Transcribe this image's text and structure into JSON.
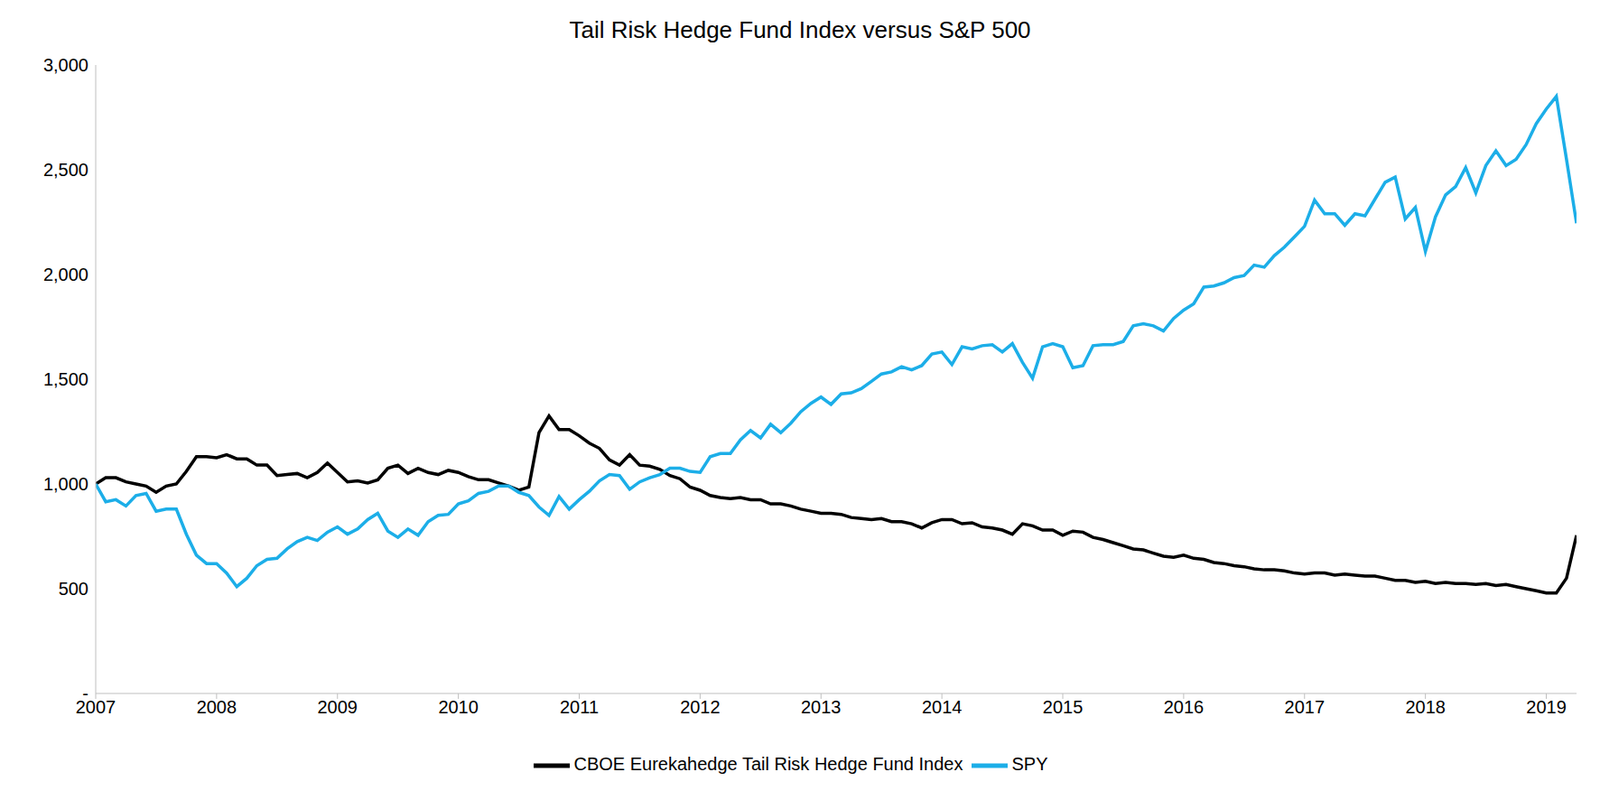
{
  "chart_data": {
    "type": "line",
    "title": "Tail Risk Hedge Fund Index versus S&P 500",
    "x": [
      2007,
      2007.083,
      2007.167,
      2007.25,
      2007.333,
      2007.417,
      2007.5,
      2007.583,
      2007.667,
      2007.75,
      2007.833,
      2007.917,
      2008,
      2008.083,
      2008.167,
      2008.25,
      2008.333,
      2008.417,
      2008.5,
      2008.583,
      2008.667,
      2008.75,
      2008.833,
      2008.917,
      2009,
      2009.083,
      2009.167,
      2009.25,
      2009.333,
      2009.417,
      2009.5,
      2009.583,
      2009.667,
      2009.75,
      2009.833,
      2009.917,
      2010,
      2010.083,
      2010.167,
      2010.25,
      2010.333,
      2010.417,
      2010.5,
      2010.583,
      2010.667,
      2010.75,
      2010.833,
      2010.917,
      2011,
      2011.083,
      2011.167,
      2011.25,
      2011.333,
      2011.417,
      2011.5,
      2011.583,
      2011.667,
      2011.75,
      2011.833,
      2011.917,
      2012,
      2012.083,
      2012.167,
      2012.25,
      2012.333,
      2012.417,
      2012.5,
      2012.583,
      2012.667,
      2012.75,
      2012.833,
      2012.917,
      2013,
      2013.083,
      2013.167,
      2013.25,
      2013.333,
      2013.417,
      2013.5,
      2013.583,
      2013.667,
      2013.75,
      2013.833,
      2013.917,
      2014,
      2014.083,
      2014.167,
      2014.25,
      2014.333,
      2014.417,
      2014.5,
      2014.583,
      2014.667,
      2014.75,
      2014.833,
      2014.917,
      2015,
      2015.083,
      2015.167,
      2015.25,
      2015.333,
      2015.417,
      2015.5,
      2015.583,
      2015.667,
      2015.75,
      2015.833,
      2015.917,
      2016,
      2016.083,
      2016.167,
      2016.25,
      2016.333,
      2016.417,
      2016.5,
      2016.583,
      2016.667,
      2016.75,
      2016.833,
      2016.917,
      2017,
      2017.083,
      2017.167,
      2017.25,
      2017.333,
      2017.417,
      2017.5,
      2017.583,
      2017.667,
      2017.75,
      2017.833,
      2017.917,
      2018,
      2018.083,
      2018.167,
      2018.25,
      2018.333,
      2018.417,
      2018.5,
      2018.583,
      2018.667,
      2018.75,
      2018.833,
      2018.917,
      2019,
      2019.083,
      2019.167,
      2019.25
    ],
    "series": [
      {
        "name": "CBOE Eurekahedge Tail Risk Hedge Fund Index",
        "color": "#000000",
        "values": [
          1000,
          1030,
          1030,
          1010,
          1000,
          990,
          960,
          990,
          1000,
          1060,
          1130,
          1130,
          1125,
          1140,
          1120,
          1120,
          1090,
          1090,
          1040,
          1045,
          1050,
          1030,
          1055,
          1100,
          1055,
          1010,
          1015,
          1005,
          1020,
          1075,
          1090,
          1050,
          1075,
          1055,
          1045,
          1065,
          1055,
          1035,
          1020,
          1020,
          1005,
          990,
          970,
          985,
          1245,
          1325,
          1260,
          1260,
          1230,
          1195,
          1170,
          1115,
          1090,
          1140,
          1090,
          1085,
          1070,
          1040,
          1025,
          985,
          970,
          945,
          935,
          930,
          935,
          925,
          925,
          905,
          905,
          895,
          880,
          870,
          860,
          860,
          855,
          840,
          835,
          830,
          835,
          820,
          820,
          810,
          790,
          815,
          830,
          830,
          810,
          815,
          795,
          790,
          780,
          760,
          810,
          800,
          780,
          780,
          755,
          775,
          770,
          745,
          735,
          720,
          705,
          690,
          685,
          670,
          655,
          650,
          660,
          645,
          640,
          625,
          620,
          610,
          605,
          595,
          590,
          590,
          585,
          575,
          570,
          575,
          575,
          565,
          570,
          565,
          560,
          560,
          550,
          540,
          540,
          530,
          535,
          525,
          530,
          525,
          525,
          520,
          525,
          515,
          520,
          510,
          500,
          490,
          480,
          480,
          550,
          755
        ]
      },
      {
        "name": "SPY",
        "color": "#1CAEE8",
        "values": [
          1000,
          915,
          925,
          895,
          945,
          955,
          870,
          880,
          880,
          760,
          660,
          620,
          620,
          575,
          510,
          550,
          610,
          640,
          645,
          690,
          725,
          745,
          730,
          770,
          795,
          760,
          785,
          830,
          860,
          775,
          745,
          785,
          755,
          820,
          850,
          855,
          905,
          920,
          955,
          965,
          990,
          990,
          960,
          945,
          890,
          850,
          940,
          880,
          925,
          965,
          1015,
          1045,
          1040,
          975,
          1010,
          1030,
          1045,
          1075,
          1075,
          1060,
          1055,
          1130,
          1145,
          1145,
          1210,
          1255,
          1220,
          1285,
          1245,
          1290,
          1345,
          1385,
          1415,
          1380,
          1430,
          1435,
          1455,
          1490,
          1525,
          1535,
          1560,
          1545,
          1565,
          1620,
          1630,
          1570,
          1655,
          1645,
          1660,
          1665,
          1630,
          1670,
          1580,
          1505,
          1655,
          1670,
          1655,
          1555,
          1565,
          1660,
          1665,
          1665,
          1680,
          1755,
          1765,
          1755,
          1730,
          1790,
          1830,
          1860,
          1940,
          1945,
          1960,
          1985,
          1995,
          2045,
          2035,
          2090,
          2130,
          2180,
          2230,
          2355,
          2290,
          2290,
          2235,
          2290,
          2280,
          2360,
          2440,
          2465,
          2265,
          2320,
          2110,
          2275,
          2380,
          2420,
          2510,
          2390,
          2520,
          2590,
          2520,
          2550,
          2620,
          2720,
          2790,
          2850,
          2550,
          2245
        ]
      }
    ],
    "xlim": [
      2007,
      2019.25
    ],
    "xticks": [
      2007,
      2008,
      2009,
      2010,
      2011,
      2012,
      2013,
      2014,
      2015,
      2016,
      2017,
      2018,
      2019
    ],
    "ylim": [
      0,
      3000
    ],
    "yticks": [
      {
        "value": 0,
        "label": "-"
      },
      500,
      {
        "value": 1000,
        "label": "1,000"
      },
      {
        "value": 1500,
        "label": "1,500"
      },
      {
        "value": 2000,
        "label": "2,000"
      },
      {
        "value": 2500,
        "label": "2,500"
      },
      {
        "value": 3000,
        "label": "3,000"
      }
    ],
    "grid": false,
    "legend": "bottom"
  }
}
